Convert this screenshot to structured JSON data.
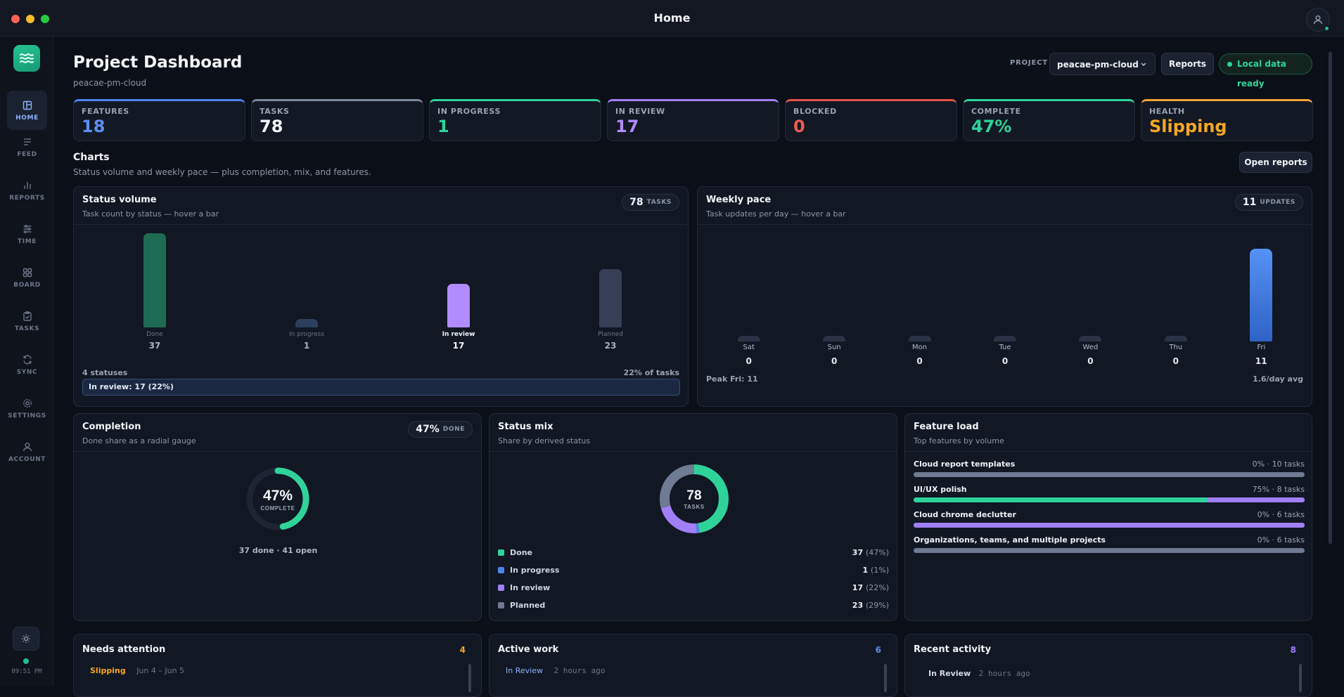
{
  "window": {
    "title": "Home"
  },
  "sidebar": {
    "items": [
      {
        "label": "HOME",
        "icon": "home-icon",
        "active": true
      },
      {
        "label": "FEED",
        "icon": "feed-icon",
        "active": false
      },
      {
        "label": "REPORTS",
        "icon": "reports-icon",
        "active": false
      },
      {
        "label": "TIME",
        "icon": "time-icon",
        "active": false
      },
      {
        "label": "BOARD",
        "icon": "board-icon",
        "active": false
      },
      {
        "label": "TASKS",
        "icon": "tasks-icon",
        "active": false
      },
      {
        "label": "SYNC",
        "icon": "sync-icon",
        "active": false
      },
      {
        "label": "SETTINGS",
        "icon": "settings-icon",
        "active": false
      },
      {
        "label": "ACCOUNT",
        "icon": "account-icon",
        "active": false
      }
    ],
    "clock": "09:51 PM"
  },
  "header": {
    "title": "Project Dashboard",
    "subtitle": "peacae-pm-cloud",
    "project_label": "PROJECT",
    "project_value": "peacae-pm-cloud",
    "reports_label": "Reports",
    "status_label": "Local data ready"
  },
  "stats": [
    {
      "label": "FEATURES",
      "value": "18",
      "accent": "#4d84f0",
      "value_color": "#5b8ff5"
    },
    {
      "label": "TASKS",
      "value": "78",
      "accent": "#7d879a",
      "value_color": "#f2f4f8"
    },
    {
      "label": "IN PROGRESS",
      "value": "1",
      "accent": "#2fd39a",
      "value_color": "#2fd39a"
    },
    {
      "label": "IN REVIEW",
      "value": "17",
      "accent": "#a17ff7",
      "value_color": "#b08cff"
    },
    {
      "label": "BLOCKED",
      "value": "0",
      "accent": "#e5534b",
      "value_color": "#ef5b52"
    },
    {
      "label": "COMPLETE",
      "value": "47%",
      "accent": "#2fd39a",
      "value_color": "#2fd39a"
    },
    {
      "label": "HEALTH",
      "value": "Slipping",
      "accent": "#f3a23a",
      "value_color": "#f5a623"
    }
  ],
  "charts_section": {
    "title": "Charts",
    "subtitle": "Status volume and weekly pace — plus completion, mix, and features.",
    "open_reports_label": "Open reports"
  },
  "status_volume": {
    "title": "Status volume",
    "subtitle": "Task count by status — hover a bar",
    "pill_number": "78",
    "pill_unit": "TASKS",
    "footer_left": "4 statuses",
    "footer_right": "22% of tasks",
    "hover_text": "In review: 17 (22%)"
  },
  "weekly_pace": {
    "title": "Weekly pace",
    "subtitle": "Task updates per day — hover a bar",
    "pill_number": "11",
    "pill_unit": "UPDATES",
    "footer_left": "Peak Fri: 11",
    "footer_right": "1.6/day avg"
  },
  "completion": {
    "title": "Completion",
    "subtitle": "Done share as a radial gauge",
    "pill_number": "47%",
    "pill_unit": "DONE",
    "percent": 47,
    "center_value": "47%",
    "center_label": "COMPLETE",
    "footer": "37 done · 41 open"
  },
  "status_mix": {
    "title": "Status mix",
    "subtitle": "Share by derived status",
    "center_value": "78",
    "center_label": "TASKS",
    "legend": [
      {
        "name": "Done",
        "value": "37",
        "pct": "(47%)",
        "color": "#2fd39a"
      },
      {
        "name": "In progress",
        "value": "1",
        "pct": "(1%)",
        "color": "#4d84f0"
      },
      {
        "name": "In review",
        "value": "17",
        "pct": "(22%)",
        "color": "#a17ff7"
      },
      {
        "name": "Planned",
        "value": "23",
        "pct": "(29%)",
        "color": "#6f7a93"
      }
    ]
  },
  "feature_load": {
    "title": "Feature load",
    "subtitle": "Top features by volume",
    "features": [
      {
        "name": "Cloud report templates",
        "meta": "0% · 10 tasks",
        "done_pct": 0,
        "review_pct": 0
      },
      {
        "name": "UI/UX polish",
        "meta": "75% · 8 tasks",
        "done_pct": 75,
        "review_pct": 25
      },
      {
        "name": "Cloud chrome declutter",
        "meta": "0% · 6 tasks",
        "done_pct": 0,
        "review_pct": 100
      },
      {
        "name": "Organizations, teams, and multiple projects",
        "meta": "0% · 6 tasks",
        "done_pct": 0,
        "review_pct": 0
      }
    ]
  },
  "needs_attention": {
    "title": "Needs attention",
    "count": "4",
    "first_tag": "Slipping",
    "first_dates": "Jun 4 – Jun 5"
  },
  "active_work": {
    "title": "Active work",
    "count": "6",
    "first_tag": "In Review",
    "first_time": "2 hours ago"
  },
  "recent_activity": {
    "title": "Recent activity",
    "count": "8",
    "first_tag": "In Review",
    "first_time": "2 hours ago"
  },
  "chart_data": [
    {
      "type": "bar",
      "title": "Status volume",
      "categories": [
        "Done",
        "In progress",
        "In review",
        "Planned"
      ],
      "values": [
        37,
        1,
        17,
        23
      ],
      "colors": [
        "#1e6b53",
        "#2c3f5e",
        "#b08cff",
        "#363f55"
      ],
      "highlight": "In review"
    },
    {
      "type": "bar",
      "title": "Weekly pace",
      "categories": [
        "Sat",
        "Sun",
        "Mon",
        "Tue",
        "Wed",
        "Thu",
        "Fri"
      ],
      "values": [
        0,
        0,
        0,
        0,
        0,
        0,
        11
      ]
    },
    {
      "type": "pie",
      "title": "Status mix",
      "labels": [
        "Done",
        "In progress",
        "In review",
        "Planned"
      ],
      "values": [
        37,
        1,
        17,
        23
      ]
    }
  ]
}
